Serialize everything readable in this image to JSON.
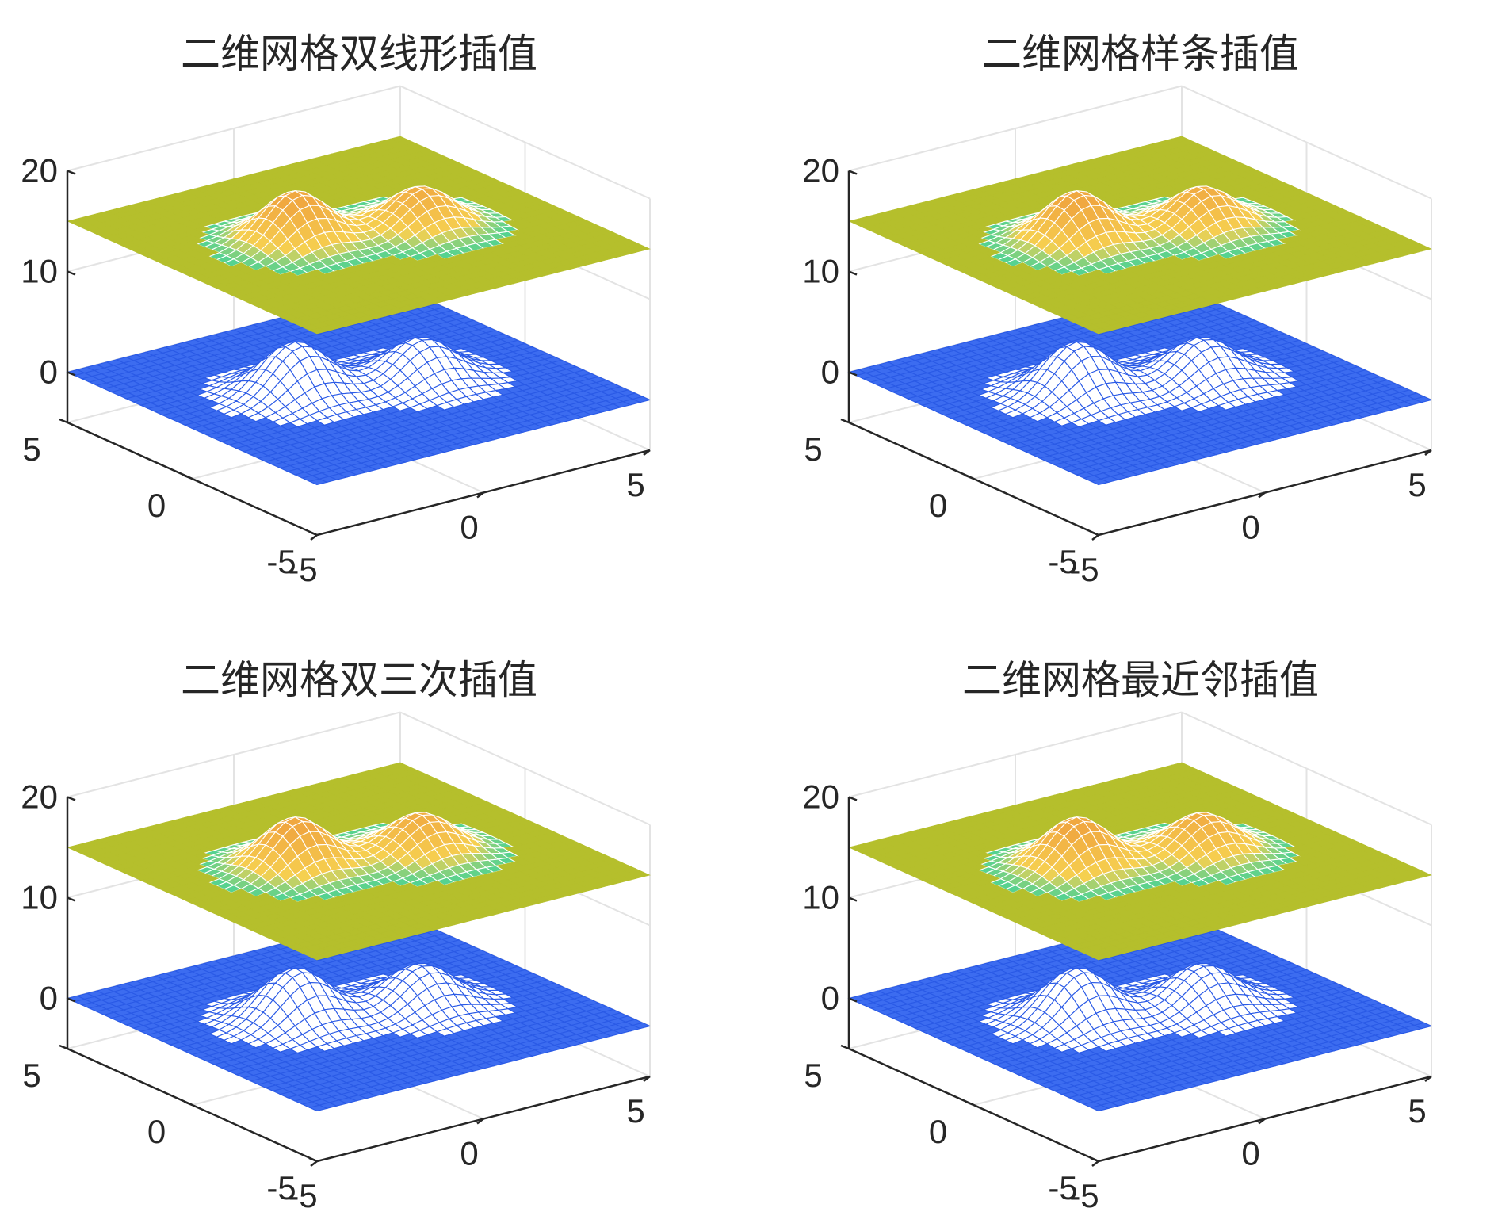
{
  "figure": {
    "colors": {
      "base_surface": "#3c6cf0",
      "base_mesh": "#2a5ae6",
      "top_surface": "#b5bf2c",
      "peak_high": "#f0a840",
      "peak_mid": "#f6d050",
      "peak_low": "#3cd29a",
      "axis": "#262626",
      "grid": "#e3e3e3"
    }
  },
  "chart_data": [
    {
      "type": "surface",
      "title": "二维网格双线形插值",
      "xlim": [
        -5,
        5
      ],
      "ylim": [
        -5,
        5
      ],
      "zlim": [
        -5,
        20
      ],
      "x_ticks": [
        "-5",
        "0",
        "5"
      ],
      "y_ticks": [
        "-5",
        "0",
        "5"
      ],
      "z_ticks": [
        "0",
        "10",
        "20"
      ],
      "surfaces": [
        {
          "role": "interpolated mesh",
          "base_z": 0,
          "peaks": [
            {
              "x": -1.5,
              "y": 0.5,
              "height": 5
            },
            {
              "x": 1.5,
              "y": -0.5,
              "height": 4
            }
          ]
        },
        {
          "role": "shifted surface",
          "base_z": 15,
          "peaks": [
            {
              "x": -1.5,
              "y": 0.5,
              "height": 5
            },
            {
              "x": 1.5,
              "y": -0.5,
              "height": 4
            }
          ]
        }
      ]
    },
    {
      "type": "surface",
      "title": "二维网格样条插值",
      "xlim": [
        -5,
        5
      ],
      "ylim": [
        -5,
        5
      ],
      "zlim": [
        -5,
        20
      ],
      "x_ticks": [
        "-5",
        "0",
        "5"
      ],
      "y_ticks": [
        "-5",
        "0",
        "5"
      ],
      "z_ticks": [
        "0",
        "10",
        "20"
      ],
      "surfaces": [
        {
          "role": "interpolated mesh",
          "base_z": 0,
          "peaks": [
            {
              "x": -1.5,
              "y": 0.5,
              "height": 5
            },
            {
              "x": 1.5,
              "y": -0.5,
              "height": 4
            }
          ]
        },
        {
          "role": "shifted surface",
          "base_z": 15,
          "peaks": [
            {
              "x": -1.5,
              "y": 0.5,
              "height": 5
            },
            {
              "x": 1.5,
              "y": -0.5,
              "height": 4
            }
          ]
        }
      ]
    },
    {
      "type": "surface",
      "title": "二维网格双三次插值",
      "xlim": [
        -5,
        5
      ],
      "ylim": [
        -5,
        5
      ],
      "zlim": [
        -5,
        20
      ],
      "x_ticks": [
        "-5",
        "0",
        "5"
      ],
      "y_ticks": [
        "-5",
        "0",
        "5"
      ],
      "z_ticks": [
        "0",
        "10",
        "20"
      ],
      "surfaces": [
        {
          "role": "interpolated mesh",
          "base_z": 0,
          "peaks": [
            {
              "x": -1.5,
              "y": 0.5,
              "height": 5
            },
            {
              "x": 1.5,
              "y": -0.5,
              "height": 4
            }
          ]
        },
        {
          "role": "shifted surface",
          "base_z": 15,
          "peaks": [
            {
              "x": -1.5,
              "y": 0.5,
              "height": 5
            },
            {
              "x": 1.5,
              "y": -0.5,
              "height": 4
            }
          ]
        }
      ]
    },
    {
      "type": "surface",
      "title": "二维网格最近邻插值",
      "xlim": [
        -5,
        5
      ],
      "ylim": [
        -5,
        5
      ],
      "zlim": [
        -5,
        20
      ],
      "x_ticks": [
        "-5",
        "0",
        "5"
      ],
      "y_ticks": [
        "-5",
        "0",
        "5"
      ],
      "z_ticks": [
        "0",
        "10",
        "20"
      ],
      "surfaces": [
        {
          "role": "interpolated mesh",
          "base_z": 0,
          "peaks": [
            {
              "x": -1.5,
              "y": 0.5,
              "height": 5
            },
            {
              "x": 1.5,
              "y": -0.5,
              "height": 4
            }
          ]
        },
        {
          "role": "shifted surface",
          "base_z": 15,
          "peaks": [
            {
              "x": -1.5,
              "y": 0.5,
              "height": 5
            },
            {
              "x": 1.5,
              "y": -0.5,
              "height": 4
            }
          ]
        }
      ]
    }
  ]
}
